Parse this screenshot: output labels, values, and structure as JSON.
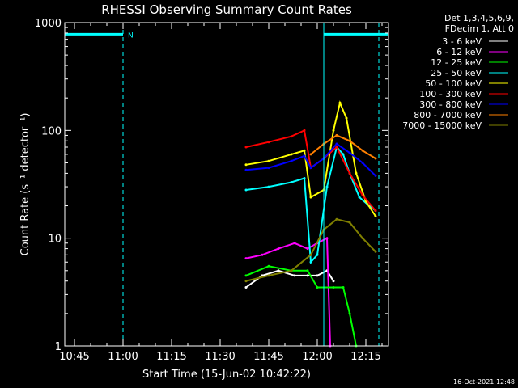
{
  "chart_data": {
    "type": "line",
    "title": "RHESSI Observing Summary Count Rates",
    "xlabel": "Start Time (15-Jun-02 10:42:22)",
    "ylabel": "Count Rate (s⁻¹ detector⁻¹)",
    "ylim": [
      1,
      1000
    ],
    "yscale": "log",
    "xlim": [
      "10:42",
      "12:22"
    ],
    "x_ticks": [
      "10:45",
      "11:00",
      "11:15",
      "11:30",
      "11:45",
      "12:00",
      "12:15"
    ],
    "y_ticks": [
      "1",
      "10",
      "100",
      "1000"
    ],
    "legend_header": [
      "Det 1,3,4,5,6,9,",
      "FDecim 1, Att 0"
    ],
    "legend_placement": "right, outside plot",
    "footer": "16-Oct-2021 12:48",
    "flag_label": "N",
    "grid": false,
    "markers": {
      "cyan_solid_vertical": [
        "10:42",
        "12:02"
      ],
      "cyan_dashed_vertical": [
        "11:00",
        "12:19"
      ],
      "cyan_horizontal_bars": [
        [
          "10:42",
          "11:00"
        ],
        [
          "12:02",
          "12:22"
        ]
      ],
      "cyan_bar_level": 780
    },
    "series": [
      {
        "name": "3 - 6 keV",
        "color": "#ffffff",
        "x": [
          "11:38",
          "11:43",
          "11:48",
          "11:53",
          "11:57",
          "12:00",
          "12:03",
          "12:05"
        ],
        "y": [
          3.5,
          4.5,
          5,
          4.5,
          4.5,
          4.5,
          5,
          4
        ]
      },
      {
        "name": "6 - 12 keV",
        "color": "#ff00ff",
        "x": [
          "11:38",
          "11:43",
          "11:48",
          "11:53",
          "11:57",
          "12:00",
          "12:03",
          "12:04"
        ],
        "y": [
          6.5,
          7,
          8,
          9,
          8,
          9,
          10,
          1
        ]
      },
      {
        "name": "12 - 25 keV",
        "color": "#00ff00",
        "x": [
          "11:38",
          "11:45",
          "11:52",
          "11:57",
          "12:00",
          "12:05",
          "12:08",
          "12:10",
          "12:12"
        ],
        "y": [
          4.5,
          5.5,
          5,
          5,
          3.5,
          3.5,
          3.5,
          2,
          1
        ]
      },
      {
        "name": "25 - 50 keV",
        "color": "#00ffff",
        "x": [
          "11:38",
          "11:45",
          "11:52",
          "11:56",
          "11:58",
          "12:00",
          "12:03",
          "12:06",
          "12:08",
          "12:10",
          "12:13",
          "12:16",
          "12:18"
        ],
        "y": [
          28,
          30,
          33,
          36,
          6,
          7,
          30,
          70,
          60,
          40,
          24,
          20,
          18
        ]
      },
      {
        "name": "50 - 100 keV",
        "color": "#ffff00",
        "x": [
          "11:38",
          "11:45",
          "11:52",
          "11:56",
          "11:58",
          "12:02",
          "12:05",
          "12:07",
          "12:09",
          "12:12",
          "12:15",
          "12:18"
        ],
        "y": [
          48,
          52,
          60,
          65,
          24,
          28,
          100,
          180,
          130,
          40,
          22,
          16
        ]
      },
      {
        "name": "100 - 300 keV",
        "color": "#ff0000",
        "x": [
          "11:38",
          "11:45",
          "11:52",
          "11:56",
          "11:58",
          "12:02",
          "12:06",
          "12:10",
          "12:14",
          "12:18"
        ],
        "y": [
          70,
          78,
          88,
          100,
          45,
          55,
          70,
          40,
          25,
          18
        ]
      },
      {
        "name": "300 - 800 keV",
        "color": "#0000ff",
        "x": [
          "11:38",
          "11:45",
          "11:52",
          "11:56",
          "11:58",
          "12:02",
          "12:06",
          "12:10",
          "12:14",
          "12:18"
        ],
        "y": [
          43,
          45,
          52,
          58,
          45,
          55,
          75,
          62,
          50,
          38
        ]
      },
      {
        "name": "800 - 7000 keV",
        "color": "#ff8000",
        "x": [
          "11:58",
          "12:02",
          "12:06",
          "12:10",
          "12:14",
          "12:18"
        ],
        "y": [
          60,
          75,
          90,
          80,
          65,
          55
        ]
      },
      {
        "name": "7000 - 15000 keV",
        "color": "#808000",
        "x": [
          "11:38",
          "11:45",
          "11:52",
          "11:58",
          "12:02",
          "12:06",
          "12:10",
          "12:14",
          "12:18"
        ],
        "y": [
          4,
          4.5,
          5,
          7,
          12,
          15,
          14,
          10,
          7.5
        ]
      }
    ]
  }
}
